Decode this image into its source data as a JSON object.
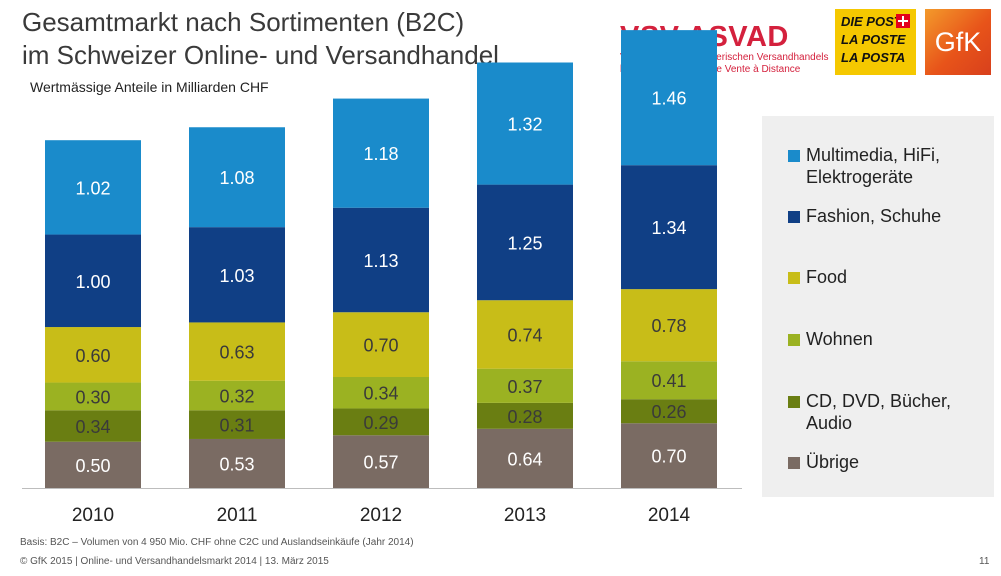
{
  "title_line1": "Gesamtmarkt nach Sortimenten (B2C)",
  "title_line2": "im Schweizer Online- und Versandhandel",
  "subtitle": "Wertmässige Anteile in Milliarden CHF",
  "logos": {
    "vsv_name": "VSV ASVAD",
    "vsv_sub1": "Verband des Schweizerischen Versandhandels",
    "vsv_sub2": "l'Association Suisse de Vente à Distance",
    "post_line1": "DIE POST",
    "post_line2": "LA POSTE",
    "post_line3": "LA POSTA",
    "gfk": "GfK"
  },
  "legend": [
    {
      "label": "Multimedia, HiFi,\nElektrogeräte",
      "color": "#1a8bcb"
    },
    {
      "label": "Fashion, Schuhe",
      "color": "#103f85"
    },
    {
      "label": "Food",
      "color": "#c8bd18"
    },
    {
      "label": "Wohnen",
      "color": "#9bb222"
    },
    {
      "label": "CD, DVD, Bücher,\nAudio",
      "color": "#6a7e12"
    },
    {
      "label": "Übrige",
      "color": "#7a6b63"
    }
  ],
  "footnote": "Basis: B2C – Volumen von 4 950 Mio. CHF ohne C2C und Auslandseinkäufe (Jahr 2014)",
  "footer": "© GfK 2015 | Online- und Versandhandelsmarkt 2014 | 13. März 2015",
  "page_number": "11",
  "chart_data": {
    "type": "bar",
    "stacked": true,
    "title": "Gesamtmarkt nach Sortimenten (B2C)",
    "ylabel": "Milliarden CHF",
    "categories": [
      "2010",
      "2011",
      "2012",
      "2013",
      "2014"
    ],
    "series": [
      {
        "name": "Übrige",
        "color": "#7a6b63",
        "values": [
          0.5,
          0.53,
          0.57,
          0.64,
          0.7
        ]
      },
      {
        "name": "CD, DVD, Bücher, Audio",
        "color": "#6a7e12",
        "values": [
          0.34,
          0.31,
          0.29,
          0.28,
          0.26
        ]
      },
      {
        "name": "Wohnen",
        "color": "#9bb222",
        "values": [
          0.3,
          0.32,
          0.34,
          0.37,
          0.41
        ]
      },
      {
        "name": "Food",
        "color": "#c8bd18",
        "values": [
          0.6,
          0.63,
          0.7,
          0.74,
          0.78
        ]
      },
      {
        "name": "Fashion, Schuhe",
        "color": "#103f85",
        "values": [
          1.0,
          1.03,
          1.13,
          1.25,
          1.34
        ]
      },
      {
        "name": "Multimedia, HiFi, Elektrogeräte",
        "color": "#1a8bcb",
        "values": [
          1.02,
          1.08,
          1.18,
          1.32,
          1.46
        ]
      }
    ]
  }
}
